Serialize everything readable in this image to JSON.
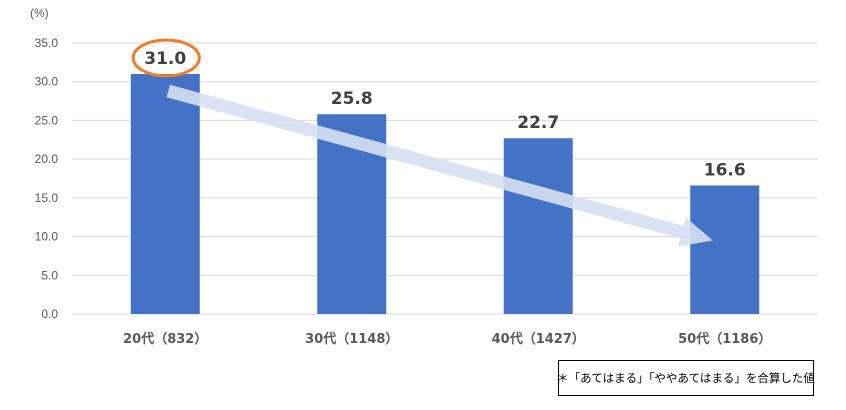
{
  "chart_data": {
    "type": "bar",
    "unit_label": "(%)",
    "categories": [
      "20代（832）",
      "30代（1148）",
      "40代（1427）",
      "50代（1186）"
    ],
    "values": [
      31.0,
      25.8,
      22.7,
      16.6
    ],
    "data_labels": [
      "31.0",
      "25.8",
      "22.7",
      "16.6"
    ],
    "y_ticks": [
      "0.0",
      "5.0",
      "10.0",
      "15.0",
      "20.0",
      "25.0",
      "30.0",
      "35.0"
    ],
    "ylim": [
      0,
      35
    ],
    "grid": true,
    "highlighted_category": "20代（832）",
    "trend_arrow": {
      "from": "20代（832）",
      "to": "50代（1186）"
    },
    "colors": {
      "bar": "#4472C4",
      "highlight": "#ED7D31",
      "arrow": "#D6E0F2",
      "grid": "#D9D9D9",
      "text": "#595959"
    }
  },
  "note": "＊「あてはまる」「ややあてはまる」を合算した値"
}
